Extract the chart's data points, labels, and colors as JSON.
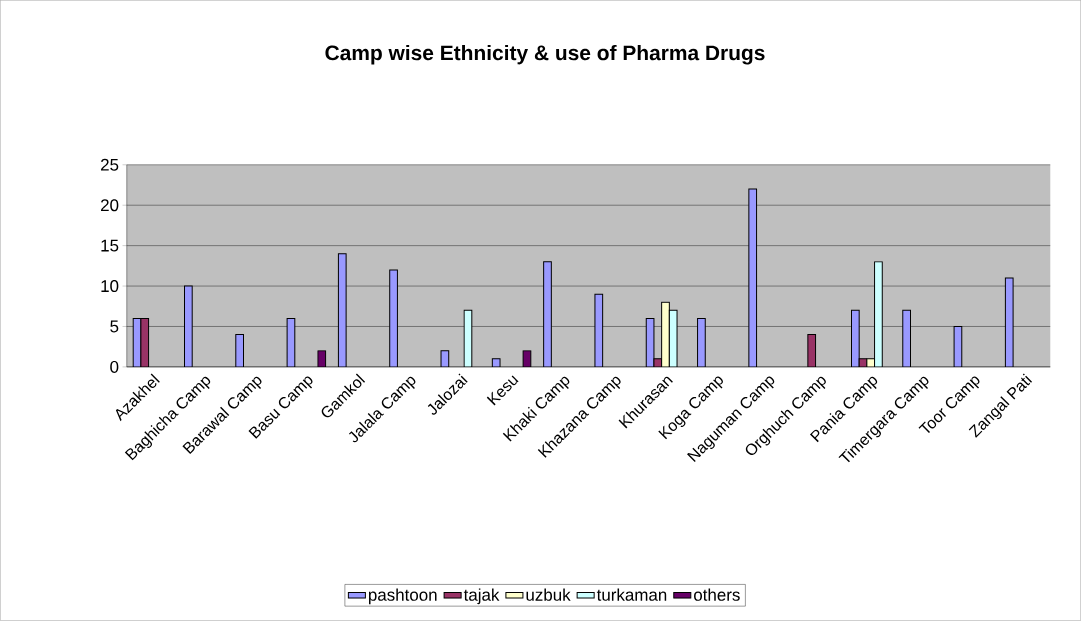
{
  "chart_data": {
    "type": "bar",
    "title": "Camp wise Ethnicity & use of Pharma Drugs",
    "categories": [
      "Azakhel",
      "Baghicha Camp",
      "Barawal Camp",
      "Basu Camp",
      "Gamkol",
      "Jalala Camp",
      "Jalozai",
      "Kesu",
      "Khaki Camp",
      "Khazana Camp",
      "Khurasan",
      "Koga Camp",
      "Naguman Camp",
      "Orghuch Camp",
      "Pania Camp",
      "Timergara Camp",
      "Toor Camp",
      "Zangal Pati"
    ],
    "series": [
      {
        "name": "pashtoon",
        "color": "#9999ff",
        "values": [
          6,
          10,
          4,
          6,
          14,
          12,
          2,
          1,
          13,
          9,
          6,
          6,
          22,
          null,
          7,
          7,
          5,
          11
        ]
      },
      {
        "name": "tajak",
        "color": "#993366",
        "values": [
          6,
          null,
          null,
          null,
          null,
          null,
          null,
          null,
          null,
          null,
          1,
          null,
          null,
          4,
          1,
          null,
          null,
          null
        ]
      },
      {
        "name": "uzbuk",
        "color": "#ffffcc",
        "values": [
          null,
          null,
          null,
          null,
          null,
          null,
          null,
          null,
          null,
          null,
          8,
          null,
          null,
          null,
          1,
          null,
          null,
          null
        ]
      },
      {
        "name": "turkaman",
        "color": "#ccffff",
        "values": [
          null,
          null,
          null,
          null,
          null,
          null,
          7,
          null,
          null,
          null,
          7,
          null,
          null,
          null,
          13,
          null,
          null,
          null
        ]
      },
      {
        "name": "others",
        "color": "#660066",
        "values": [
          null,
          null,
          null,
          2,
          null,
          null,
          null,
          2,
          null,
          null,
          null,
          null,
          null,
          null,
          null,
          null,
          null,
          null
        ]
      }
    ],
    "ylim": [
      0,
      25
    ],
    "yticks": [
      0,
      5,
      10,
      15,
      20,
      25
    ],
    "grid": "y",
    "legend": "bottom"
  }
}
